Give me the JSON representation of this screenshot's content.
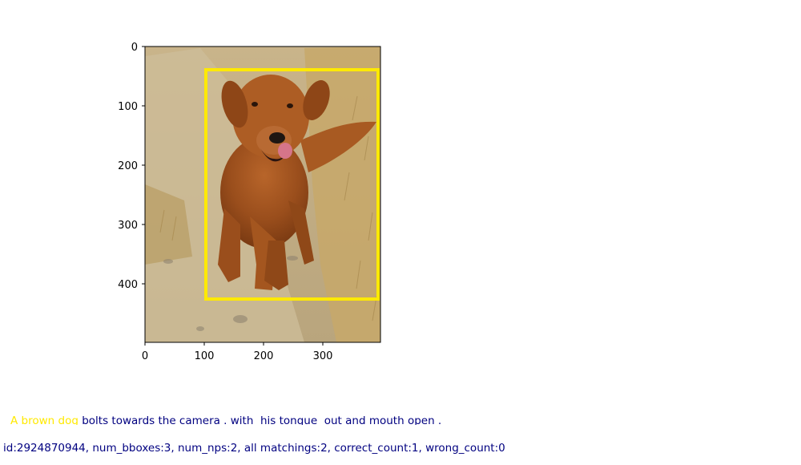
{
  "image": {
    "description": "brown golden retriever running toward camera on dirt path with tongue out",
    "x_ticks": [
      "0",
      "100",
      "200",
      "300"
    ],
    "y_ticks": [
      "0",
      "100",
      "200",
      "300",
      "400"
    ],
    "bbox_color": "#ffe900"
  },
  "caption": {
    "phrase": "A brown dog",
    "rest": " bolts towards the camera . with  his tongue  out and mouth open ."
  },
  "stats": "id:2924870944, num_bboxes:3, num_nps:2, all matchings:2, correct_count:1, wrong_count:0",
  "colors": {
    "phrase": "#ffe900",
    "text": "#000080"
  }
}
